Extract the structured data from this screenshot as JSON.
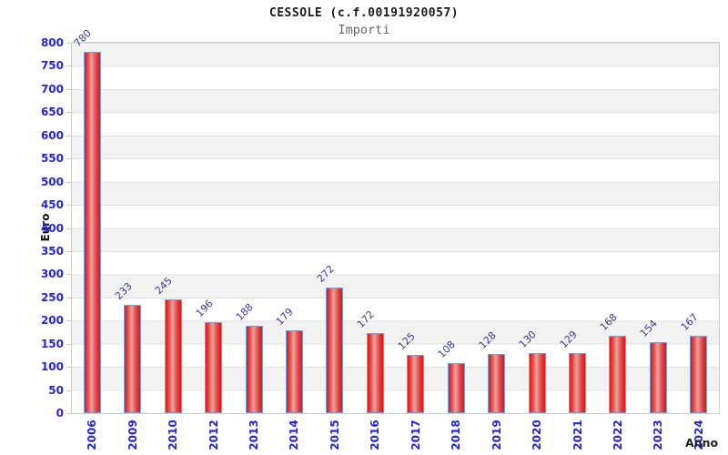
{
  "chart_data": {
    "type": "bar",
    "title": "CESSOLE (c.f.00191920057)",
    "subtitle": "Importi",
    "xlabel": "Anno",
    "ylabel": "Euro",
    "categories": [
      "2006",
      "2009",
      "2010",
      "2012",
      "2013",
      "2014",
      "2015",
      "2016",
      "2017",
      "2018",
      "2019",
      "2020",
      "2021",
      "2022",
      "2023",
      "2024"
    ],
    "values": [
      780,
      233,
      245,
      196,
      188,
      179,
      272,
      172,
      125,
      108,
      128,
      130,
      129,
      168,
      154,
      167
    ],
    "ylim": [
      0,
      800
    ],
    "ytick_step": 50,
    "yticks": [
      0,
      50,
      100,
      150,
      200,
      250,
      300,
      350,
      400,
      450,
      500,
      550,
      600,
      650,
      700,
      750,
      800
    ],
    "grid": "horizontal-bands-alternating",
    "legend": "none",
    "colors": {
      "bar_edge_red": "#e51414",
      "bar_center_red": "#efa09c",
      "bar_border_blue": "#6aa4ea",
      "axis_tick_label_blue": "#2525d6",
      "value_label_blue": "#3a3a96",
      "band_gray": "#f2f2f2",
      "band_white": "#ffffff",
      "plot_border": "#cccccc",
      "title_color": "#1a1a1a",
      "subtitle_color": "#666666"
    }
  }
}
